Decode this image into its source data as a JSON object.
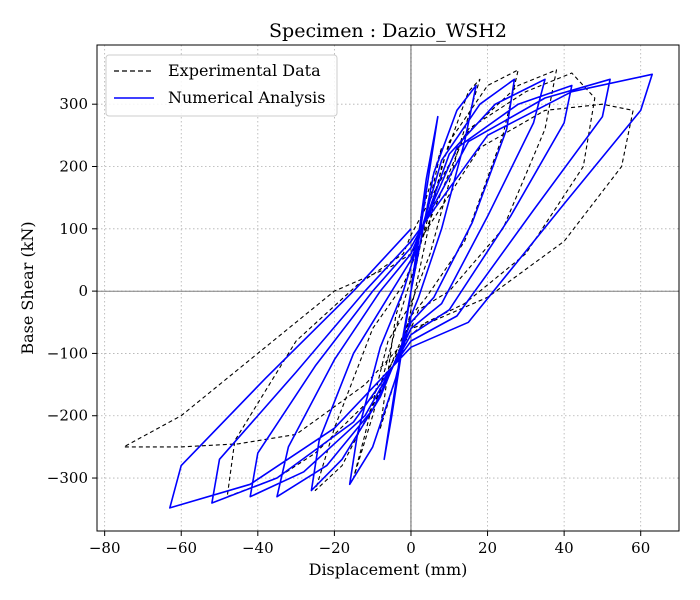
{
  "chart_data": {
    "type": "line",
    "title": "Specimen : Dazio_WSH2",
    "xlabel": "Displacement (mm)",
    "ylabel": "Base Shear (kN)",
    "xlim": [
      -82,
      70
    ],
    "ylim": [
      -385,
      395
    ],
    "xticks": [
      -80,
      -60,
      -40,
      -20,
      0,
      20,
      40,
      60
    ],
    "yticks": [
      -300,
      -200,
      -100,
      0,
      100,
      200,
      300
    ],
    "xtick_labels": [
      "−80",
      "−60",
      "−40",
      "−20",
      "0",
      "20",
      "40",
      "60"
    ],
    "ytick_labels": [
      "−300",
      "−200",
      "−100",
      "0",
      "100",
      "200",
      "300"
    ],
    "grid": true,
    "legend_position": "top-left",
    "series": [
      {
        "name": "Experimental Data",
        "color": "#000000",
        "style": "dashed",
        "x": [
          0,
          4,
          8,
          4,
          0,
          -4,
          -8,
          -4,
          0,
          8,
          15,
          18,
          12,
          5,
          0,
          -6,
          -12,
          -15,
          -10,
          -4,
          0,
          10,
          20,
          28,
          24,
          14,
          4,
          0,
          -8,
          -18,
          -25,
          -20,
          -10,
          -2,
          0,
          14,
          28,
          38,
          35,
          24,
          10,
          2,
          0,
          -10,
          -25,
          -35,
          -48,
          -46,
          -30,
          -14,
          -2,
          0,
          15,
          30,
          42,
          48,
          45,
          30,
          14,
          4,
          0,
          -12,
          -30,
          -45,
          -60,
          -75,
          -60,
          -40,
          -20,
          -5,
          0,
          18,
          35,
          50,
          58,
          55,
          40,
          20,
          5,
          0
        ],
        "y": [
          0,
          120,
          230,
          150,
          40,
          -40,
          -220,
          -140,
          -30,
          200,
          320,
          340,
          220,
          60,
          -20,
          -80,
          -230,
          -300,
          -200,
          -60,
          20,
          240,
          330,
          355,
          250,
          80,
          -10,
          -40,
          -160,
          -280,
          -320,
          -220,
          -60,
          10,
          40,
          250,
          330,
          355,
          260,
          100,
          0,
          -30,
          -60,
          -170,
          -260,
          -300,
          -330,
          -240,
          -80,
          10,
          60,
          90,
          260,
          320,
          350,
          310,
          200,
          60,
          -20,
          -50,
          -70,
          -150,
          -230,
          -245,
          -250,
          -250,
          -200,
          -100,
          0,
          40,
          60,
          230,
          290,
          300,
          290,
          200,
          80,
          -10,
          -50,
          -60
        ]
      },
      {
        "name": "Numerical Analysis",
        "color": "#0000ff",
        "style": "solid",
        "x": [
          0,
          4,
          7,
          5,
          2,
          0,
          -2,
          -5,
          -7,
          -5,
          -2,
          0,
          6,
          12,
          17,
          14,
          8,
          2,
          0,
          -4,
          -10,
          -16,
          -14,
          -8,
          -2,
          0,
          8,
          18,
          27,
          25,
          16,
          6,
          0,
          -8,
          -18,
          -26,
          -24,
          -15,
          -5,
          0,
          10,
          22,
          35,
          32,
          20,
          8,
          0,
          -10,
          -22,
          -35,
          -32,
          -20,
          -8,
          0,
          12,
          28,
          42,
          40,
          26,
          10,
          0,
          -12,
          -28,
          -42,
          -40,
          -25,
          -10,
          0,
          15,
          35,
          52,
          50,
          32,
          12,
          0,
          -15,
          -35,
          -52,
          -50,
          -30,
          -12,
          0,
          20,
          42,
          63,
          60,
          40,
          15,
          0,
          -20,
          -42,
          -63,
          -60,
          -38,
          -15,
          0
        ],
        "y": [
          0,
          180,
          280,
          200,
          80,
          0,
          -80,
          -200,
          -270,
          -190,
          -70,
          0,
          190,
          290,
          330,
          240,
          100,
          -10,
          -40,
          -140,
          -250,
          -310,
          -230,
          -90,
          0,
          40,
          210,
          300,
          340,
          260,
          110,
          -10,
          -50,
          -170,
          -270,
          -320,
          -240,
          -100,
          0,
          50,
          220,
          300,
          340,
          270,
          120,
          -20,
          -60,
          -190,
          -280,
          -330,
          -250,
          -110,
          0,
          60,
          230,
          300,
          330,
          270,
          120,
          -30,
          -70,
          -200,
          -290,
          -330,
          -260,
          -120,
          0,
          70,
          240,
          310,
          340,
          280,
          130,
          -40,
          -80,
          -210,
          -300,
          -340,
          -270,
          -130,
          0,
          80,
          250,
          320,
          348,
          290,
          140,
          -50,
          -90,
          -220,
          -310,
          -348,
          -280,
          -140,
          0,
          100
        ]
      }
    ]
  }
}
